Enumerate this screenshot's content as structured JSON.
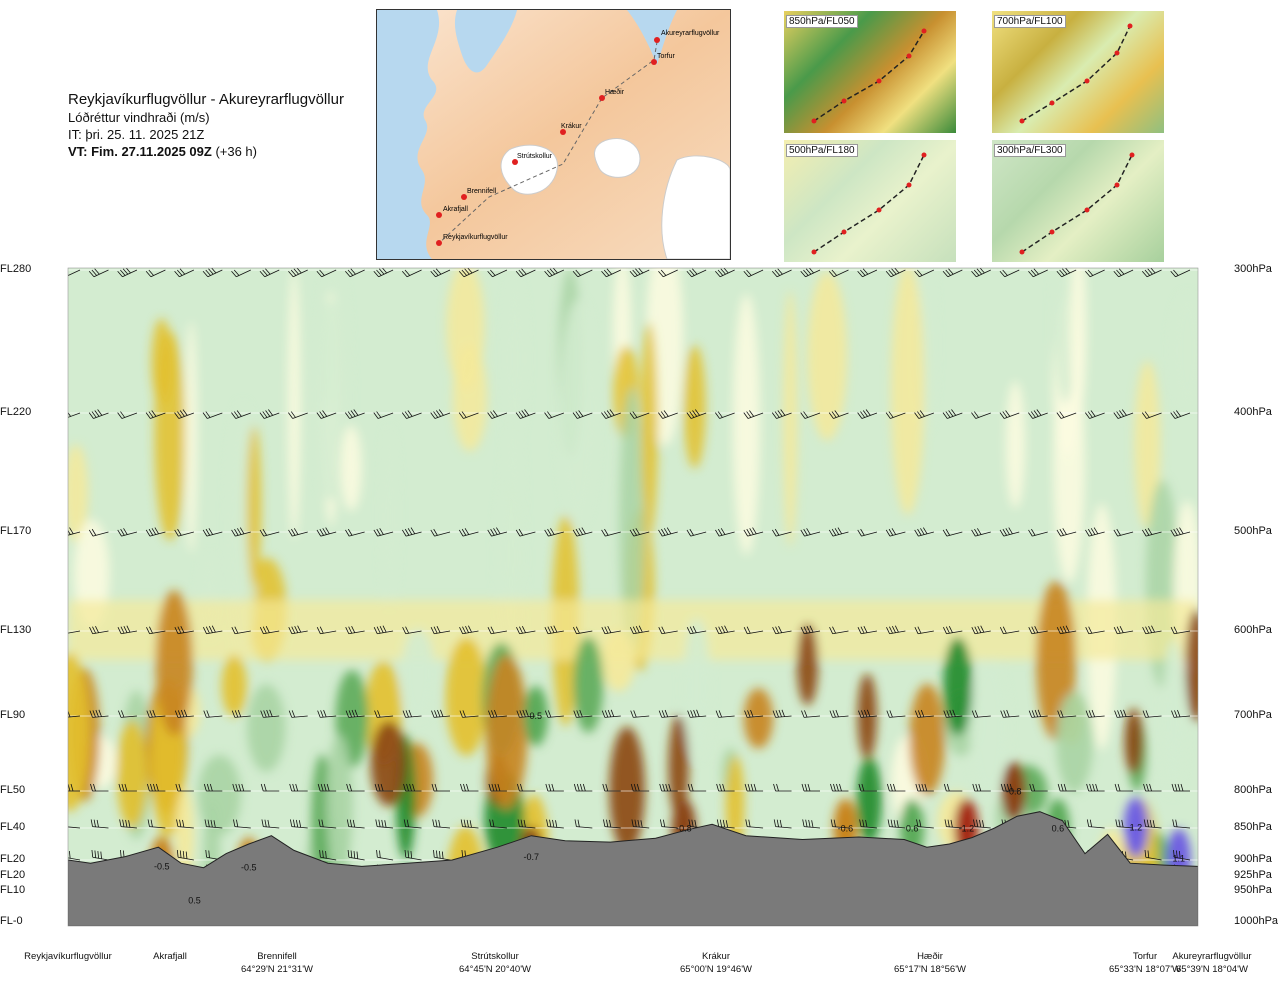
{
  "header": {
    "route": "Reykjavíkurflugvöllur - Akureyrarflugvöllur",
    "parameter": "Lóðréttur vindhraði (m/s)",
    "issue_time": "IT: þri. 25. 11. 2025 21Z",
    "valid_time": "VT: Fim. 27.11.2025 09Z",
    "lead": "(+36 h)"
  },
  "map": {
    "points": [
      {
        "name": "Akureyrarflugvöllur"
      },
      {
        "name": "Torfur"
      },
      {
        "name": "Hæðir"
      },
      {
        "name": "Krákur"
      },
      {
        "name": "Strútskollur"
      },
      {
        "name": "Brennifell"
      },
      {
        "name": "Akrafjall"
      },
      {
        "name": "Reykjavíkurflugvöllur"
      }
    ]
  },
  "thumbnails": [
    {
      "label": "850hPa/FL050"
    },
    {
      "label": "700hPa/FL100"
    },
    {
      "label": "500hPa/FL180"
    },
    {
      "label": "300hPa/FL300"
    }
  ],
  "chart_data": {
    "type": "heatmap",
    "title": "Lóðréttur vindhraði (m/s)",
    "left_axis": [
      "FL280",
      "FL220",
      "FL170",
      "FL130",
      "FL90",
      "FL50",
      "FL40",
      "FL20",
      "FL20",
      "FL10",
      "FL-0"
    ],
    "right_axis": [
      "300hPa",
      "400hPa",
      "500hPa",
      "600hPa",
      "700hPa",
      "800hPa",
      "850hPa",
      "900hPa",
      "925hPa",
      "950hPa",
      "1000hPa"
    ],
    "levels_hpa": [
      300,
      400,
      500,
      600,
      700,
      800,
      850,
      900,
      925,
      950,
      1000
    ],
    "locations": [
      {
        "name": "Reykjavíkurflugvöllur",
        "coord": ""
      },
      {
        "name": "Akrafjall",
        "coord": ""
      },
      {
        "name": "Brennifell",
        "coord": "64°29'N 21°31'W"
      },
      {
        "name": "Strútskollur",
        "coord": "64°45'N 20°40'W"
      },
      {
        "name": "Krákur",
        "coord": "65°00'N 19°46'W"
      },
      {
        "name": "Hæðir",
        "coord": "65°17'N 18°56'W"
      },
      {
        "name": "Torfur",
        "coord": "65°33'N 18°07'W"
      },
      {
        "name": "Akureyrarflugvöllur",
        "coord": "65°39'N 18°04'W"
      }
    ],
    "contour_labels": [
      {
        "text": "-0.5",
        "level_hpa": 910,
        "route_frac": 0.083
      },
      {
        "text": "0.5",
        "level_hpa": 965,
        "route_frac": 0.112
      },
      {
        "text": "-0.5",
        "level_hpa": 912,
        "route_frac": 0.16
      },
      {
        "text": "0.5",
        "level_hpa": 700,
        "route_frac": 0.414
      },
      {
        "text": "-0.7",
        "level_hpa": 895,
        "route_frac": 0.41
      },
      {
        "text": "-0.8",
        "level_hpa": 851,
        "route_frac": 0.545
      },
      {
        "text": "-0.6",
        "level_hpa": 851,
        "route_frac": 0.688
      },
      {
        "text": "0.6",
        "level_hpa": 851,
        "route_frac": 0.747
      },
      {
        "text": "-1.2",
        "level_hpa": 851,
        "route_frac": 0.795
      },
      {
        "text": "-0.8",
        "level_hpa": 801,
        "route_frac": 0.837
      },
      {
        "text": "0.6",
        "level_hpa": 851,
        "route_frac": 0.876
      },
      {
        "text": "1.2",
        "level_hpa": 849,
        "route_frac": 0.945
      },
      {
        "text": "1.1",
        "level_hpa": 898,
        "route_frac": 0.983
      }
    ],
    "color_scale": [
      {
        "value": -1.2,
        "color": "#a52a14"
      },
      {
        "value": -0.8,
        "color": "#8b4513"
      },
      {
        "value": -0.5,
        "color": "#c8841f"
      },
      {
        "value": -0.3,
        "color": "#e3c02c"
      },
      {
        "value": -0.1,
        "color": "#f5e99a"
      },
      {
        "value": 0,
        "color": "#fdfbe0"
      },
      {
        "value": 0.1,
        "color": "#d3ecd0"
      },
      {
        "value": 0.3,
        "color": "#a9d4a4"
      },
      {
        "value": 0.5,
        "color": "#5cab5a"
      },
      {
        "value": 0.7,
        "color": "#1e8a2a"
      },
      {
        "value": 1.0,
        "color": "#3f6fb5"
      },
      {
        "value": 1.2,
        "color": "#7060e0"
      }
    ],
    "colors": {
      "terrain": "#7a7a7a",
      "background": "#d3ecd0"
    }
  }
}
